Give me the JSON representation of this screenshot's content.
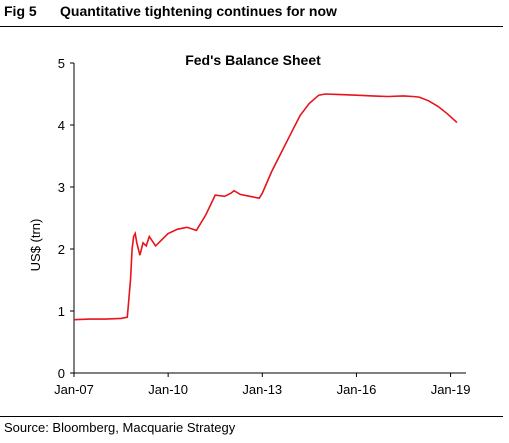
{
  "figure": {
    "number": "Fig 5",
    "title": "Quantitative tightening continues for now",
    "source": "Source: Bloomberg, Macquarie Strategy"
  },
  "chart_data": {
    "type": "line",
    "title": "Fed's Balance Sheet",
    "xlabel": "",
    "ylabel": "US$ (trn)",
    "ylim": [
      0,
      5
    ],
    "yticks": [
      "0",
      "1",
      "2",
      "3",
      "4",
      "5"
    ],
    "xlim": [
      2007.0,
      2019.3
    ],
    "xticks": [
      {
        "label": "Jan-07",
        "value": 2007.0
      },
      {
        "label": "Jan-10",
        "value": 2010.0
      },
      {
        "label": "Jan-13",
        "value": 2013.0
      },
      {
        "label": "Jan-16",
        "value": 2016.0
      },
      {
        "label": "Jan-19",
        "value": 2019.0
      }
    ],
    "grid": false,
    "line_color": "#e8131b",
    "series": [
      {
        "x": [
          2007.0,
          2007.5,
          2008.0,
          2008.5,
          2008.7,
          2008.8,
          2008.85,
          2008.9,
          2008.95,
          2009.0,
          2009.1,
          2009.2,
          2009.3,
          2009.4,
          2009.6,
          2009.8,
          2010.0,
          2010.3,
          2010.6,
          2010.9,
          2011.2,
          2011.5,
          2011.8,
          2012.0,
          2012.1,
          2012.3,
          2012.6,
          2012.9,
          2013.0,
          2013.3,
          2013.6,
          2013.9,
          2014.2,
          2014.5,
          2014.8,
          2015.0,
          2015.5,
          2016.0,
          2016.5,
          2017.0,
          2017.5,
          2017.8,
          2018.0,
          2018.3,
          2018.6,
          2018.9,
          2019.2
        ],
        "y": [
          0.86,
          0.87,
          0.87,
          0.88,
          0.9,
          1.5,
          2.0,
          2.2,
          2.25,
          2.1,
          1.9,
          2.1,
          2.05,
          2.2,
          2.05,
          2.15,
          2.25,
          2.32,
          2.35,
          2.3,
          2.55,
          2.87,
          2.85,
          2.9,
          2.94,
          2.88,
          2.85,
          2.82,
          2.9,
          3.25,
          3.55,
          3.85,
          4.15,
          4.35,
          4.48,
          4.5,
          4.49,
          4.48,
          4.47,
          4.46,
          4.47,
          4.46,
          4.45,
          4.39,
          4.3,
          4.18,
          4.04
        ]
      }
    ]
  }
}
